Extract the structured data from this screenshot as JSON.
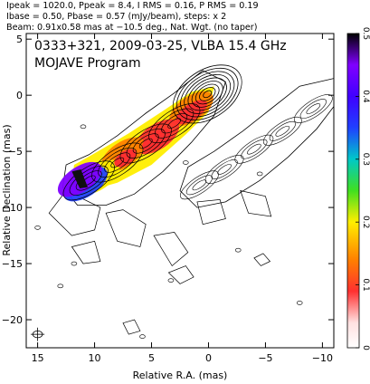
{
  "header": {
    "line1": "Ipeak = 1020.0, Ppeak = 8.4, I RMS = 0.16, P RMS = 0.19",
    "line2": "Ibase = 0.50, Pbase = 0.57 (mJy/beam), steps: x 2",
    "line3": "Beam: 0.91x0.58 mas at −10.5 deg., Nat. Wgt. (no taper)"
  },
  "panel": {
    "title": "0333+321, 2009-03-25, VLBA 15.4 GHz",
    "subtitle": "MOJAVE Program"
  },
  "chart_data": {
    "type": "heatmap",
    "xlabel": "Relative R.A. (mas)",
    "ylabel": "Relative Declination (mas)",
    "xlim": [
      16,
      -11
    ],
    "ylim": [
      -22.5,
      5.5
    ],
    "xticks": [
      15,
      10,
      5,
      0,
      -5,
      -10
    ],
    "xtick_labels": [
      "15",
      "10",
      "5",
      "0",
      "−5",
      "−10"
    ],
    "yticks": [
      5,
      0,
      -5,
      -10,
      -15,
      -20
    ],
    "ytick_labels": [
      "5",
      "0",
      "−5",
      "−10",
      "−15",
      "−20"
    ],
    "colorbar": {
      "min": 0,
      "max": 0.5,
      "ticks": [
        0,
        0.1,
        0.2,
        0.3,
        0.4,
        0.5
      ],
      "tick_labels": [
        "0",
        "0.1",
        "0.2",
        "0.3",
        "0.4",
        "0.5"
      ]
    },
    "core": {
      "x": 0.0,
      "y": 0.0
    },
    "jet_ridge": [
      [
        0,
        0
      ],
      [
        1,
        -1
      ],
      [
        2,
        -2
      ],
      [
        3,
        -3
      ],
      [
        4,
        -4
      ],
      [
        5,
        -4.5
      ],
      [
        6,
        -5
      ],
      [
        7,
        -5.8
      ],
      [
        8,
        -6.3
      ],
      [
        9,
        -7
      ],
      [
        10,
        -7.5
      ],
      [
        11,
        -8.5
      ]
    ],
    "fractional_polarization_blobs": [
      {
        "x": 1.5,
        "y": -1.2,
        "level": 0.16
      },
      {
        "x": 4.5,
        "y": -3.7,
        "level": 0.1
      },
      {
        "x": 7.5,
        "y": -5.3,
        "level": 0.18
      },
      {
        "x": 9.7,
        "y": -7.3,
        "level": 0.23
      },
      {
        "x": 10.8,
        "y": -7.9,
        "level": 0.37
      },
      {
        "x": 11.3,
        "y": -7.5,
        "level": 0.45
      }
    ],
    "polarized_jet_copy_offset": [
      -10,
      0
    ],
    "grid": false,
    "legend": "none"
  }
}
